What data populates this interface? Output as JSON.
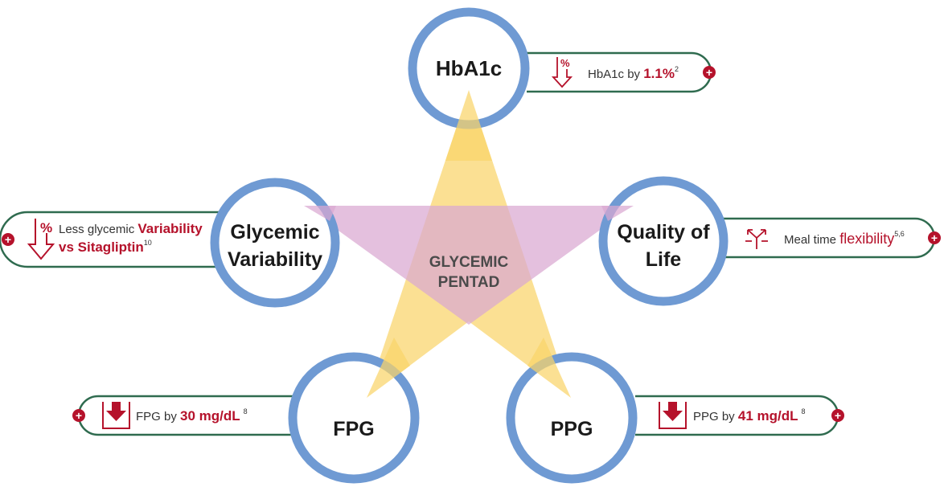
{
  "center": {
    "line1": "GLYCEMIC",
    "line2": "PENTAD"
  },
  "colors": {
    "ring": "#6f9ad3",
    "pill_border": "#2f6b4f",
    "accent": "#b5122b",
    "star": "#f9d46a",
    "triangle": "#d9a8d1",
    "center_text": "#4a4a4a"
  },
  "nodes": {
    "hba1c": {
      "label": "HbA1c"
    },
    "glycemic_variability": {
      "line1": "Glycemic",
      "line2": "Variability"
    },
    "quality_of_life": {
      "line1": "Quality of",
      "line2": "Life"
    },
    "fpg": {
      "label": "FPG"
    },
    "ppg": {
      "label": "PPG"
    }
  },
  "callouts": {
    "hba1c": {
      "icon": "percent-down-arrow-icon",
      "prefix": "HbA1c by ",
      "value": "1.1%",
      "sup": "2"
    },
    "glycemic_variability": {
      "icon": "percent-down-arrow-icon",
      "prefix": "Less glycemic ",
      "value": "Variability",
      "line2": "vs Sitagliptin",
      "sup": "10"
    },
    "quality_of_life": {
      "icon": "flexibility-arrows-icon",
      "prefix": "Meal time ",
      "value": "flexibility",
      "sup": "5,6"
    },
    "fpg": {
      "icon": "down-arrow-box-icon",
      "prefix": "FPG by ",
      "value": "30 mg/dL",
      "sup": "8"
    },
    "ppg": {
      "icon": "down-arrow-box-icon",
      "prefix": "PPG by ",
      "value": "41 mg/dL",
      "sup": "8"
    }
  },
  "expand_symbol": "+"
}
